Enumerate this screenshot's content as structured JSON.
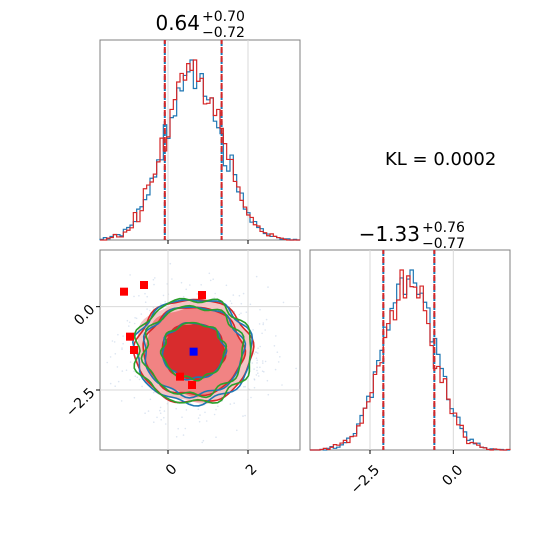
{
  "chart_data": [
    {
      "type": "histogram",
      "panel": "p1 marginal",
      "title": {
        "value": "0.64",
        "plus": "+0.70",
        "minus": "−0.72"
      },
      "xlim": [
        -1.7,
        3.3
      ],
      "ylim": [
        0,
        1.05
      ],
      "quantile_lines": [
        -0.08,
        1.34
      ],
      "mean": 0.64,
      "sigma": 0.71,
      "series": [
        {
          "color": "#1f77b4"
        },
        {
          "color": "#d62728"
        }
      ]
    },
    {
      "type": "scatter",
      "panel": "2d contour",
      "xlim": [
        -1.7,
        3.3
      ],
      "ylim": [
        -4.3,
        1.7
      ],
      "xticks": [
        0,
        2
      ],
      "yticks": [
        0.0,
        -2.5
      ],
      "xtick_labels": [
        "0",
        "2"
      ],
      "ytick_labels": [
        "0.0",
        "−2.5"
      ],
      "center": [
        0.64,
        -1.33
      ],
      "blue_marker": [
        0.64,
        -1.35
      ],
      "red_markers": [
        [
          -1.1,
          0.45
        ],
        [
          -0.6,
          0.65
        ],
        [
          -0.95,
          -0.9
        ],
        [
          -0.85,
          -1.3
        ],
        [
          0.85,
          0.35
        ],
        [
          0.3,
          -2.1
        ],
        [
          0.6,
          -2.35
        ]
      ],
      "contour_colors": [
        "#d62728",
        "#1f77b4",
        "#2ca02c"
      ],
      "fill_colors": [
        "#d62728",
        "#f08080",
        "#f6c2c2"
      ]
    },
    {
      "type": "histogram",
      "panel": "p2 marginal",
      "title": {
        "value": "−1.33",
        "plus": "+0.76",
        "minus": "−0.77"
      },
      "xlim": [
        -4.3,
        1.7
      ],
      "ylim": [
        0,
        1.05
      ],
      "xticks": [
        -2.5,
        0.0
      ],
      "xtick_labels": [
        "−2.5",
        "0.0"
      ],
      "quantile_lines": [
        -2.1,
        -0.57
      ],
      "mean": -1.33,
      "sigma": 0.76,
      "series": [
        {
          "color": "#1f77b4"
        },
        {
          "color": "#d62728"
        }
      ]
    }
  ],
  "annotation": {
    "kl_text": "KL = 0.0002"
  }
}
